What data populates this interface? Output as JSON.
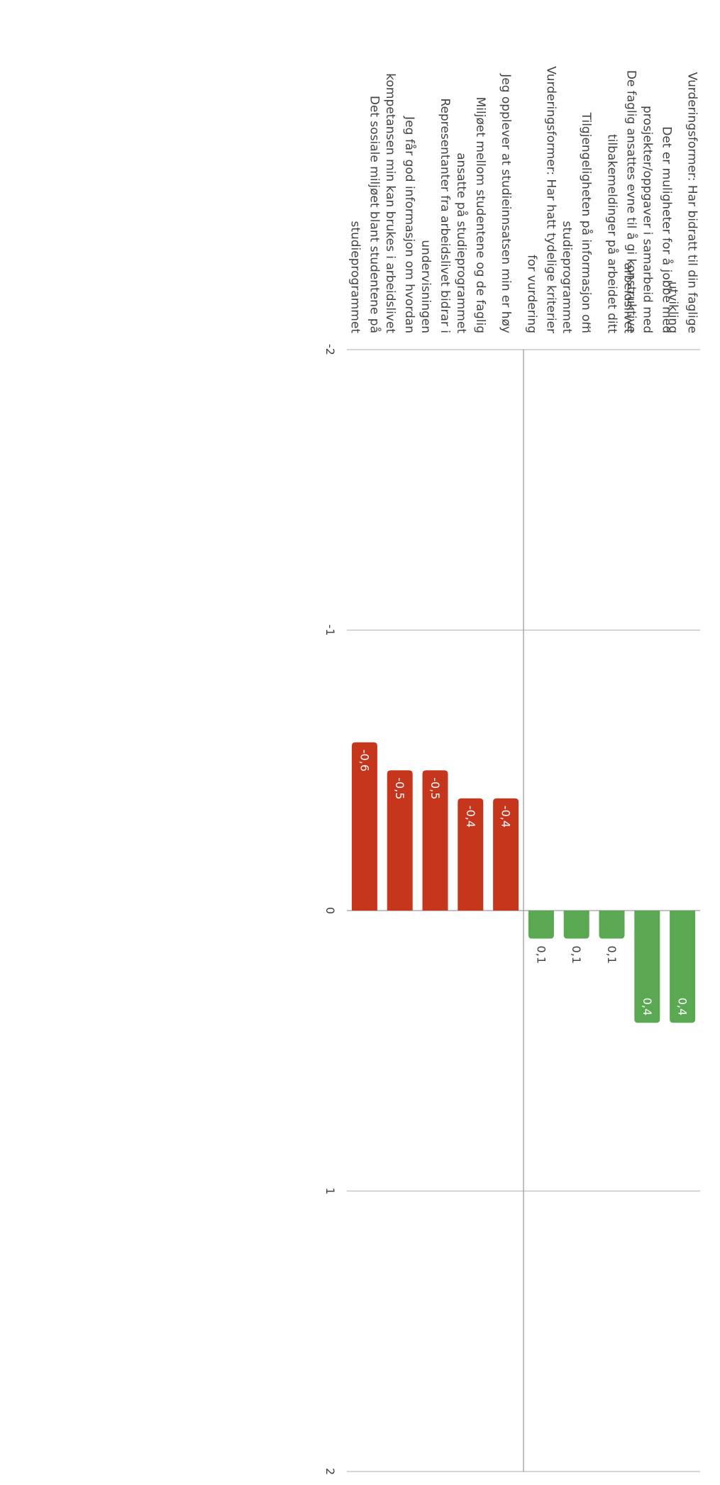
{
  "colors": {
    "positive": "#5ba853",
    "negative": "#c6361c",
    "grid": "#bdbdbd",
    "axis": "#9e9e9e",
    "label": "#424242",
    "bar_label_inside": "#ffffff",
    "bar_label_outside": "#424242"
  },
  "chart_data": {
    "type": "bar",
    "orientation": "horizontal",
    "rotated": "90deg-clockwise",
    "title": "",
    "xlabel": "",
    "ylabel": "",
    "xlim": [
      -2,
      2
    ],
    "grid": true,
    "legend": "none",
    "ticks": [
      {
        "value": -2,
        "label": "-2"
      },
      {
        "value": -1,
        "label": "-1"
      },
      {
        "value": 0,
        "label": "0"
      },
      {
        "value": 1,
        "label": "1"
      },
      {
        "value": 2,
        "label": "2"
      }
    ],
    "categories": [
      {
        "lines": [
          "Vurderingsformer: Har bidratt til din faglige",
          "utvikling"
        ]
      },
      {
        "lines": [
          "Det er muligheter for å jobbe med",
          "prosjekter/oppgaver i samarbeid med",
          "arbeidslivet"
        ]
      },
      {
        "lines": [
          "De faglig ansattes evne til å gi konstruktive",
          "tilbakemeldinger på arbeidet ditt",
          "..."
        ]
      },
      {
        "lines": [
          "Tilgjengeligheten på informasjon om",
          "studieprogrammet"
        ]
      },
      {
        "lines": [
          "Vurderingsformer: Har hatt tydelige kriterier",
          "for vurdering"
        ]
      },
      {
        "lines": [
          "Jeg opplever at studieinnsatsen min er høy"
        ]
      },
      {
        "lines": [
          "Miljøet mellom studentene og de faglig",
          "ansatte på studieprogrammet"
        ]
      },
      {
        "lines": [
          "Representanter fra arbeidslivet bidrar i",
          "undervisningen"
        ]
      },
      {
        "lines": [
          "Jeg får god informasjon om hvordan",
          "kompetansen min kan brukes i arbeidslivet"
        ]
      },
      {
        "lines": [
          "Det sosiale miljøet blant studentene på",
          "studieprogrammet"
        ]
      }
    ],
    "values": [
      0.4,
      0.4,
      0.1,
      0.1,
      0.1,
      -0.4,
      -0.4,
      -0.5,
      -0.5,
      -0.6
    ],
    "value_labels": [
      "0,4",
      "0,4",
      "0,1",
      "0,1",
      "0,1",
      "-0,4",
      "-0,4",
      "-0,5",
      "-0,5",
      "-0,6"
    ]
  }
}
